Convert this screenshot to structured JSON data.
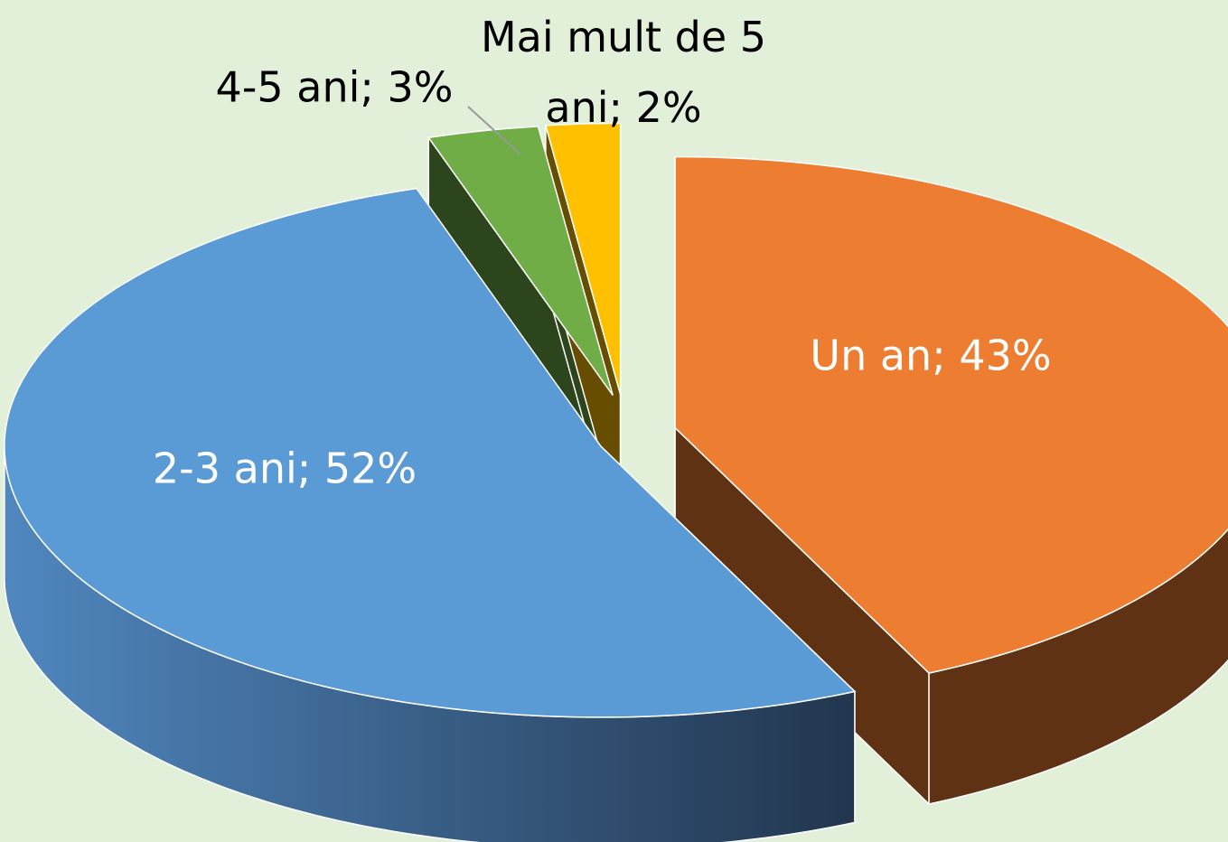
{
  "chart_data": {
    "type": "pie3d",
    "values": [
      43,
      52,
      3,
      2
    ],
    "value_labels": [
      "Un an; 43%",
      "2-3 ani; 52%",
      "4-5 ani; 3%",
      "Mai mult de 5 ani; 2%"
    ],
    "colors": [
      "#ed7d31",
      "#5b9bd5",
      "#70ad47",
      "#ffc000"
    ]
  }
}
